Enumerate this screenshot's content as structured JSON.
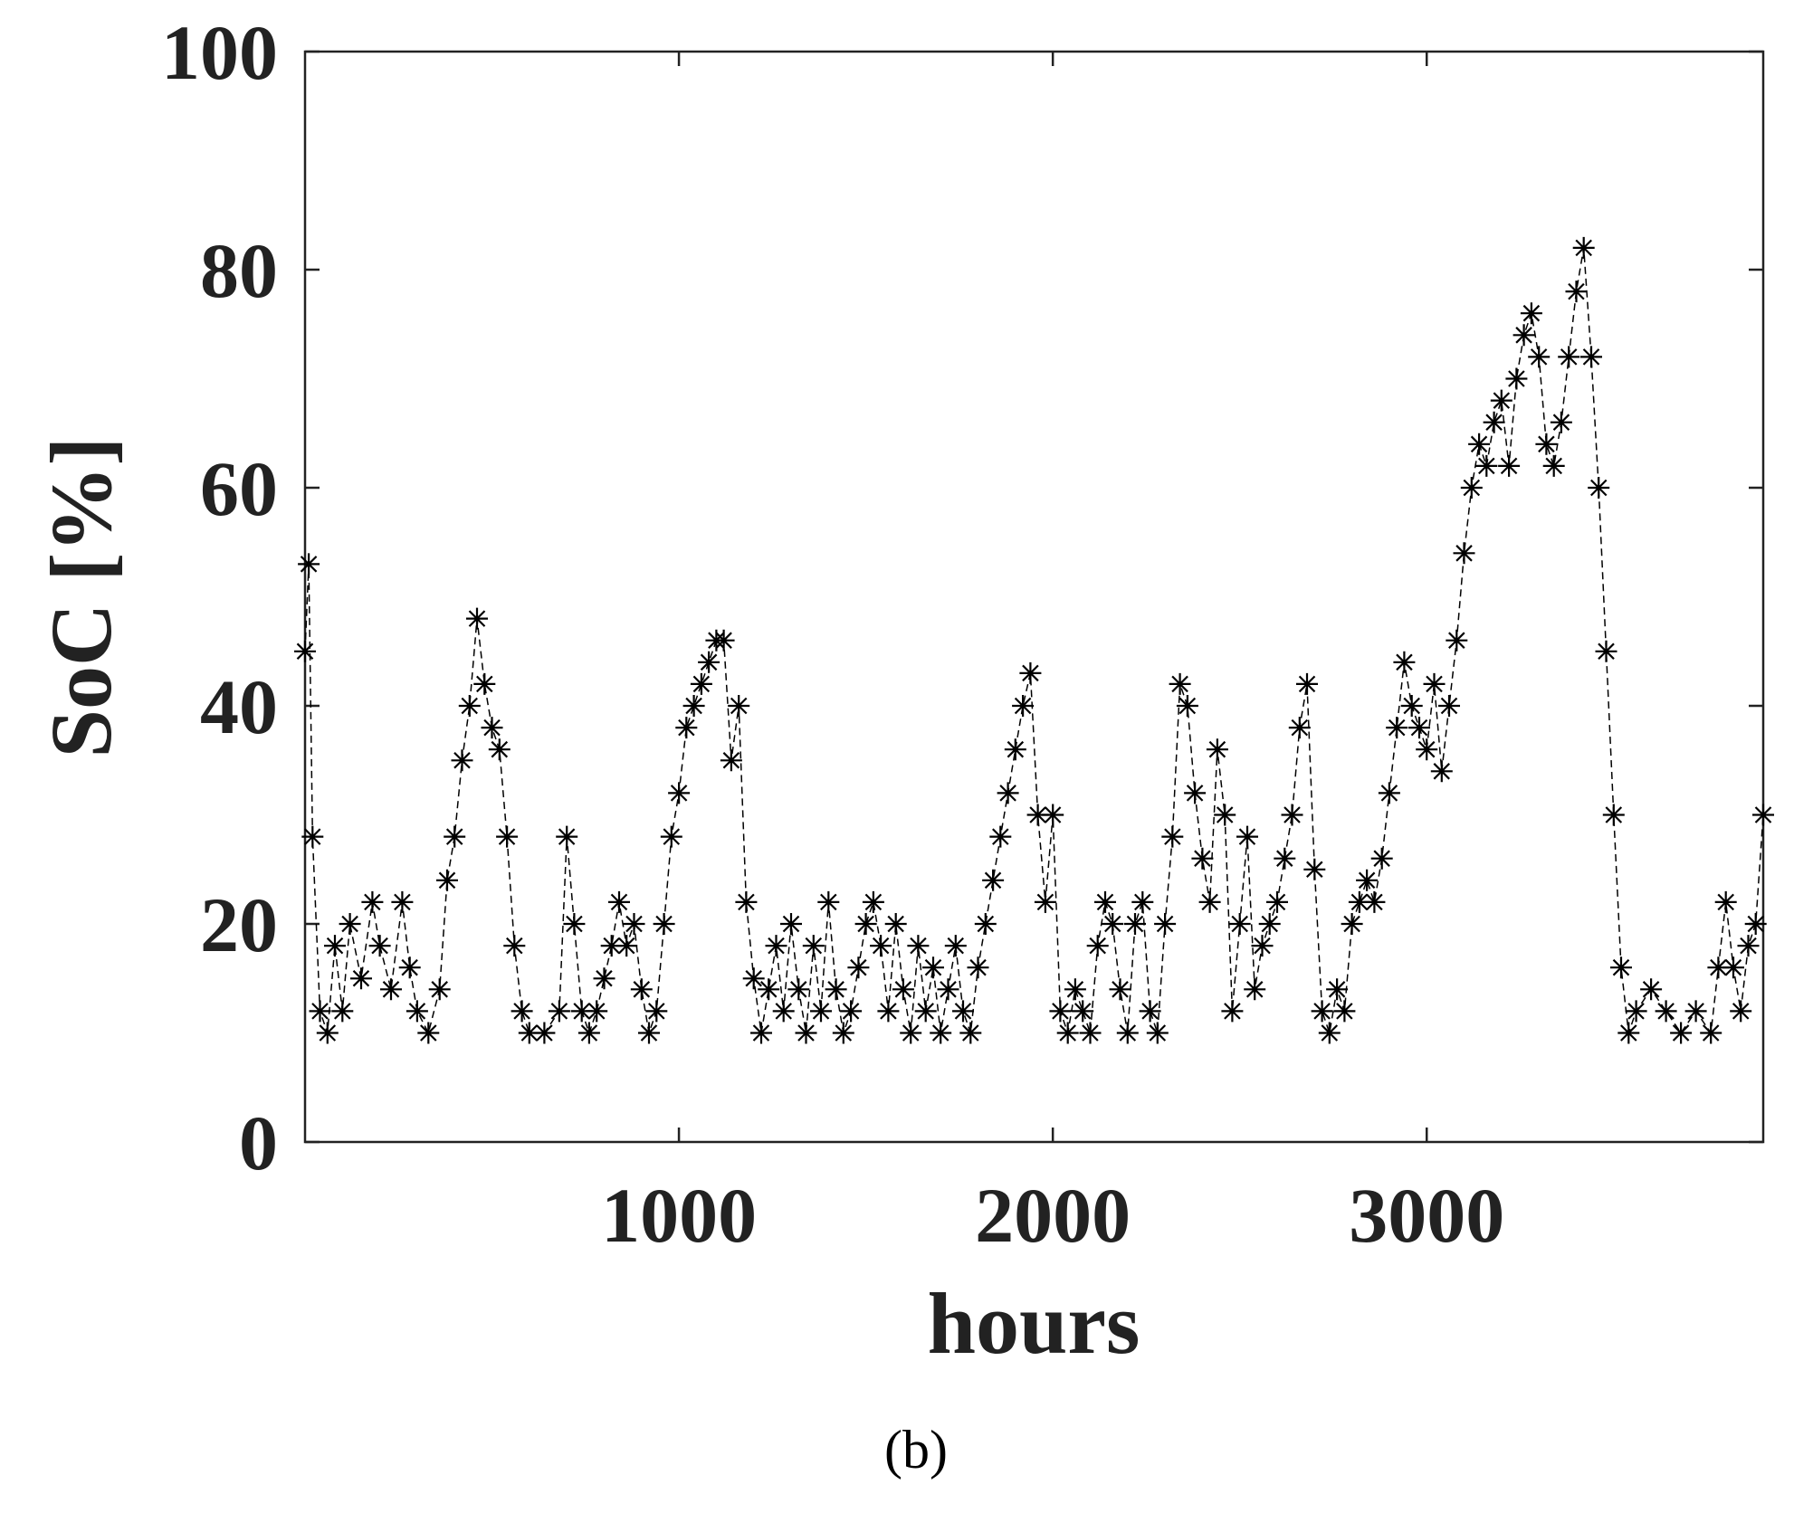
{
  "chart_data": {
    "type": "line",
    "marker": "asterisk",
    "line_style": "dashed",
    "color": "#000000",
    "xlabel": "hours",
    "ylabel": "SoC [%]",
    "caption": "(b)",
    "xlim": [
      0,
      3900
    ],
    "ylim": [
      0,
      100
    ],
    "xticks": [
      1000,
      2000,
      3000
    ],
    "yticks": [
      0,
      20,
      40,
      60,
      80,
      100
    ],
    "x": [
      0,
      10,
      20,
      40,
      60,
      80,
      100,
      120,
      150,
      180,
      200,
      230,
      260,
      280,
      300,
      330,
      360,
      380,
      400,
      420,
      440,
      460,
      480,
      500,
      520,
      540,
      560,
      580,
      600,
      640,
      680,
      700,
      720,
      740,
      760,
      780,
      800,
      820,
      840,
      860,
      880,
      900,
      920,
      940,
      960,
      980,
      1000,
      1020,
      1040,
      1060,
      1080,
      1100,
      1120,
      1140,
      1160,
      1180,
      1200,
      1220,
      1240,
      1260,
      1280,
      1300,
      1320,
      1340,
      1360,
      1380,
      1400,
      1420,
      1440,
      1460,
      1480,
      1500,
      1520,
      1540,
      1560,
      1580,
      1600,
      1620,
      1640,
      1660,
      1680,
      1700,
      1720,
      1740,
      1760,
      1780,
      1800,
      1820,
      1840,
      1860,
      1880,
      1900,
      1920,
      1940,
      1960,
      1980,
      2000,
      2020,
      2040,
      2060,
      2080,
      2100,
      2120,
      2140,
      2160,
      2180,
      2200,
      2220,
      2240,
      2260,
      2280,
      2300,
      2320,
      2340,
      2360,
      2380,
      2400,
      2420,
      2440,
      2460,
      2480,
      2500,
      2520,
      2540,
      2560,
      2580,
      2600,
      2620,
      2640,
      2660,
      2680,
      2700,
      2720,
      2740,
      2760,
      2780,
      2800,
      2820,
      2840,
      2860,
      2880,
      2900,
      2920,
      2940,
      2960,
      2980,
      3000,
      3020,
      3040,
      3060,
      3080,
      3100,
      3120,
      3140,
      3160,
      3180,
      3200,
      3220,
      3240,
      3260,
      3280,
      3300,
      3320,
      3340,
      3360,
      3380,
      3400,
      3420,
      3440,
      3460,
      3480,
      3500,
      3520,
      3540,
      3560,
      3600,
      3640,
      3680,
      3720,
      3760,
      3780,
      3800,
      3820,
      3840,
      3860,
      3880,
      3900
    ],
    "values": [
      45,
      53,
      28,
      12,
      10,
      18,
      12,
      20,
      15,
      22,
      18,
      14,
      22,
      16,
      12,
      10,
      14,
      24,
      28,
      35,
      40,
      48,
      42,
      38,
      36,
      28,
      18,
      12,
      10,
      10,
      12,
      28,
      20,
      12,
      10,
      12,
      15,
      18,
      22,
      18,
      20,
      14,
      10,
      12,
      20,
      28,
      32,
      38,
      40,
      42,
      44,
      46,
      46,
      35,
      40,
      22,
      15,
      10,
      14,
      18,
      12,
      20,
      14,
      10,
      18,
      12,
      22,
      14,
      10,
      12,
      16,
      20,
      22,
      18,
      12,
      20,
      14,
      10,
      18,
      12,
      16,
      10,
      14,
      18,
      12,
      10,
      16,
      20,
      24,
      28,
      32,
      36,
      40,
      43,
      30,
      22,
      30,
      12,
      10,
      14,
      12,
      10,
      18,
      22,
      20,
      14,
      10,
      20,
      22,
      12,
      10,
      20,
      28,
      42,
      40,
      32,
      26,
      22,
      36,
      30,
      12,
      20,
      28,
      14,
      18,
      20,
      22,
      26,
      30,
      38,
      42,
      25,
      12,
      10,
      14,
      12,
      20,
      22,
      24,
      22,
      26,
      32,
      38,
      44,
      40,
      38,
      36,
      42,
      34,
      40,
      46,
      54,
      60,
      64,
      62,
      66,
      68,
      62,
      70,
      74,
      76,
      72,
      64,
      62,
      66,
      72,
      78,
      82,
      72,
      60,
      45,
      30,
      16,
      10,
      12,
      14,
      12,
      10,
      12,
      10,
      16,
      22,
      16,
      12,
      18,
      20,
      30
    ]
  }
}
